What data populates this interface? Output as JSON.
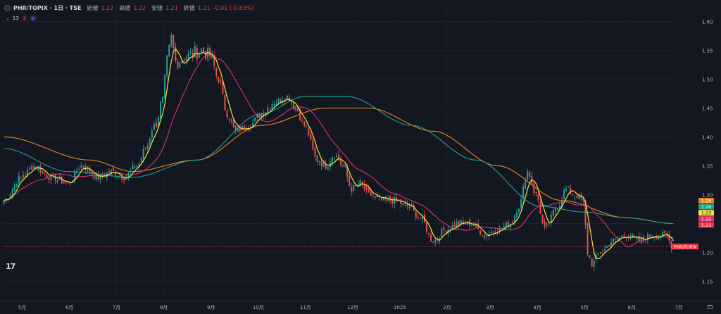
{
  "header": {
    "symbol": "PHR/TOPIX · 1日 · TSE",
    "open_label": "始値",
    "open": "1.22",
    "high_label": "高値",
    "high": "1.22",
    "low_label": "安値",
    "low": "1.21",
    "close_label": "終値",
    "close": "1.21",
    "change": "-0.01 (-0.83%)",
    "indicator_count": "13",
    "badge1": "1",
    "badge2": "∞"
  },
  "logo": "17",
  "chart_data": {
    "type": "candlestick",
    "ylim": [
      1.125,
      1.625
    ],
    "y_ticks": [
      "1.60",
      "1.55",
      "1.50",
      "1.45",
      "1.40",
      "1.35",
      "1.30",
      "1.25",
      "1.20",
      "1.15"
    ],
    "x_ticks": [
      "5月",
      "6月",
      "7月",
      "8月",
      "9月",
      "10月",
      "11月",
      "12月",
      "2025",
      "2月",
      "3月",
      "4月",
      "5月",
      "6月",
      "7月"
    ],
    "series_colors": {
      "ma_fast": "#f5e342",
      "ma_mid": "#e0306a",
      "ma_slow": "#1fa08a",
      "ma_long": "#e8841c",
      "up": "#26a69a",
      "down": "#ef5350"
    },
    "price_labels": [
      {
        "text": "1.26",
        "color": "#e8841c"
      },
      {
        "text": "1.26",
        "color": "#1fa08a"
      },
      {
        "text": "1.23",
        "color": "#f5e342"
      },
      {
        "text": "1.22",
        "color": "#e0306a"
      },
      {
        "text": "1.21",
        "color": "#f23645"
      }
    ],
    "symbol_tag": "PHR/TOPIX",
    "last_price": 1.21,
    "close_anchors": [
      [
        0,
        1.29
      ],
      [
        8,
        1.33
      ],
      [
        14,
        1.35
      ],
      [
        22,
        1.33
      ],
      [
        30,
        1.32
      ],
      [
        36,
        1.35
      ],
      [
        44,
        1.33
      ],
      [
        50,
        1.34
      ],
      [
        56,
        1.33
      ],
      [
        62,
        1.35
      ],
      [
        66,
        1.38
      ],
      [
        70,
        1.42
      ],
      [
        74,
        1.46
      ],
      [
        76,
        1.53
      ],
      [
        78,
        1.57
      ],
      [
        80,
        1.53
      ],
      [
        86,
        1.54
      ],
      [
        92,
        1.55
      ],
      [
        96,
        1.54
      ],
      [
        100,
        1.5
      ],
      [
        104,
        1.44
      ],
      [
        108,
        1.41
      ],
      [
        114,
        1.42
      ],
      [
        120,
        1.44
      ],
      [
        126,
        1.46
      ],
      [
        132,
        1.47
      ],
      [
        136,
        1.45
      ],
      [
        140,
        1.42
      ],
      [
        146,
        1.36
      ],
      [
        150,
        1.35
      ],
      [
        154,
        1.37
      ],
      [
        158,
        1.35
      ],
      [
        162,
        1.31
      ],
      [
        166,
        1.32
      ],
      [
        170,
        1.3
      ],
      [
        176,
        1.29
      ],
      [
        182,
        1.29
      ],
      [
        188,
        1.28
      ],
      [
        194,
        1.26
      ],
      [
        200,
        1.22
      ],
      [
        206,
        1.24
      ],
      [
        212,
        1.25
      ],
      [
        218,
        1.25
      ],
      [
        224,
        1.23
      ],
      [
        230,
        1.24
      ],
      [
        236,
        1.25
      ],
      [
        240,
        1.28
      ],
      [
        244,
        1.34
      ],
      [
        248,
        1.3
      ],
      [
        252,
        1.24
      ],
      [
        258,
        1.28
      ],
      [
        262,
        1.31
      ],
      [
        266,
        1.3
      ],
      [
        270,
        1.29
      ],
      [
        272,
        1.2
      ],
      [
        274,
        1.18
      ],
      [
        278,
        1.2
      ],
      [
        284,
        1.22
      ],
      [
        290,
        1.23
      ],
      [
        296,
        1.22
      ],
      [
        302,
        1.23
      ],
      [
        308,
        1.23
      ],
      [
        312,
        1.21
      ]
    ],
    "ma_slow_anchors": [
      [
        0,
        1.38
      ],
      [
        30,
        1.34
      ],
      [
        60,
        1.33
      ],
      [
        90,
        1.36
      ],
      [
        120,
        1.44
      ],
      [
        140,
        1.47
      ],
      [
        160,
        1.47
      ],
      [
        190,
        1.42
      ],
      [
        220,
        1.36
      ],
      [
        250,
        1.28
      ],
      [
        270,
        1.27
      ],
      [
        290,
        1.26
      ],
      [
        312,
        1.25
      ]
    ],
    "ma_long_anchors": [
      [
        0,
        1.4
      ],
      [
        40,
        1.36
      ],
      [
        60,
        1.34
      ],
      [
        90,
        1.36
      ],
      [
        120,
        1.42
      ],
      [
        150,
        1.45
      ],
      [
        170,
        1.45
      ],
      [
        200,
        1.41
      ],
      [
        230,
        1.35
      ],
      [
        260,
        1.29
      ],
      [
        290,
        1.26
      ],
      [
        312,
        1.25
      ]
    ]
  }
}
